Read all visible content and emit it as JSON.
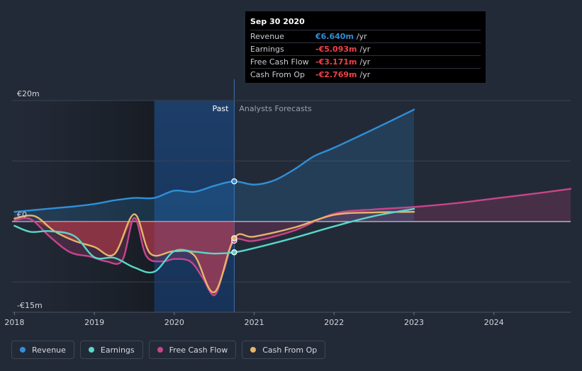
{
  "tooltip": {
    "date": "Sep 30 2020",
    "rows": [
      {
        "label": "Revenue",
        "value": "€6.640m",
        "unit": "/yr",
        "color": "#2f8fd8"
      },
      {
        "label": "Earnings",
        "value": "-€5.093m",
        "unit": "/yr",
        "color": "#f0404a"
      },
      {
        "label": "Free Cash Flow",
        "value": "-€3.171m",
        "unit": "/yr",
        "color": "#f0404a"
      },
      {
        "label": "Cash From Op",
        "value": "-€2.769m",
        "unit": "/yr",
        "color": "#f0404a"
      }
    ]
  },
  "legend": [
    {
      "label": "Revenue",
      "color": "#2f8fd8"
    },
    {
      "label": "Earnings",
      "color": "#58d7c9"
    },
    {
      "label": "Free Cash Flow",
      "color": "#c8458a"
    },
    {
      "label": "Cash From Op",
      "color": "#e6b56a"
    }
  ],
  "chart_data": {
    "type": "line",
    "title": "",
    "xlabel": "",
    "ylabel": "",
    "x_ticks": [
      "2018",
      "2019",
      "2020",
      "2021",
      "2022",
      "2023",
      "2024"
    ],
    "y_labels": [
      {
        "label": "€20m",
        "value": 20
      },
      {
        "label": "€0",
        "value": 0
      },
      {
        "label": "-€15m",
        "value": -15
      }
    ],
    "ylim": [
      -15,
      20
    ],
    "xlim": [
      2017.97,
      2024.96
    ],
    "grid": true,
    "divider_labels": {
      "past": "Past",
      "forecast": "Analysts Forecasts"
    },
    "divider_x": 2020.75,
    "highlight_range": [
      2019.75,
      2020.75
    ],
    "series": [
      {
        "name": "Revenue",
        "color": "#2f8fd8",
        "area": true,
        "x": [
          2018.0,
          2018.25,
          2018.5,
          2018.75,
          2019.0,
          2019.25,
          2019.5,
          2019.75,
          2020.0,
          2020.25,
          2020.5,
          2020.75,
          2021.0,
          2021.25,
          2021.5,
          2021.75,
          2022.0,
          2022.5,
          2023.0
        ],
        "y": [
          1.6,
          1.9,
          2.2,
          2.5,
          2.9,
          3.5,
          3.9,
          3.9,
          5.1,
          4.9,
          5.9,
          6.64,
          6.1,
          6.8,
          8.6,
          10.8,
          12.2,
          15.3,
          18.5
        ]
      },
      {
        "name": "Earnings",
        "color": "#58d7c9",
        "area": false,
        "x": [
          2018.0,
          2018.2,
          2018.45,
          2018.75,
          2019.0,
          2019.25,
          2019.5,
          2019.75,
          2020.0,
          2020.25,
          2020.5,
          2020.75,
          2021.0,
          2021.5,
          2022.0,
          2022.5,
          2023.0
        ],
        "y": [
          -0.7,
          -1.7,
          -1.6,
          -2.4,
          -5.9,
          -6.0,
          -7.6,
          -8.3,
          -4.9,
          -5.0,
          -5.3,
          -5.093,
          -4.4,
          -2.7,
          -0.8,
          0.9,
          2.1
        ]
      },
      {
        "name": "Free Cash Flow",
        "color": "#c8458a",
        "area": true,
        "x": [
          2018.0,
          2018.2,
          2018.45,
          2018.7,
          2018.95,
          2019.15,
          2019.35,
          2019.5,
          2019.65,
          2019.85,
          2020.0,
          2020.2,
          2020.35,
          2020.5,
          2020.62,
          2020.75,
          2021.0,
          2021.5,
          2022.0,
          2022.5,
          2023.0,
          2023.5,
          2024.0,
          2024.5,
          2024.96
        ],
        "y": [
          0.2,
          0.4,
          -2.6,
          -5.1,
          -5.8,
          -6.6,
          -6.4,
          0.6,
          -5.7,
          -6.6,
          -6.2,
          -6.6,
          -9.2,
          -12.2,
          -8.1,
          -3.171,
          -3.2,
          -1.5,
          1.3,
          2.0,
          2.4,
          3.0,
          3.8,
          4.6,
          5.4
        ]
      },
      {
        "name": "Cash From Op",
        "color": "#e6b56a",
        "area": false,
        "x": [
          2018.0,
          2018.25,
          2018.5,
          2018.75,
          2019.0,
          2019.25,
          2019.5,
          2019.7,
          2020.0,
          2020.25,
          2020.5,
          2020.75,
          2021.0,
          2021.5,
          2022.0,
          2022.5,
          2023.0
        ],
        "y": [
          0.5,
          0.9,
          -1.6,
          -3.2,
          -4.2,
          -5.4,
          1.2,
          -5.3,
          -4.9,
          -5.6,
          -11.7,
          -2.769,
          -2.5,
          -1.0,
          1.1,
          1.5,
          1.6
        ]
      }
    ]
  }
}
